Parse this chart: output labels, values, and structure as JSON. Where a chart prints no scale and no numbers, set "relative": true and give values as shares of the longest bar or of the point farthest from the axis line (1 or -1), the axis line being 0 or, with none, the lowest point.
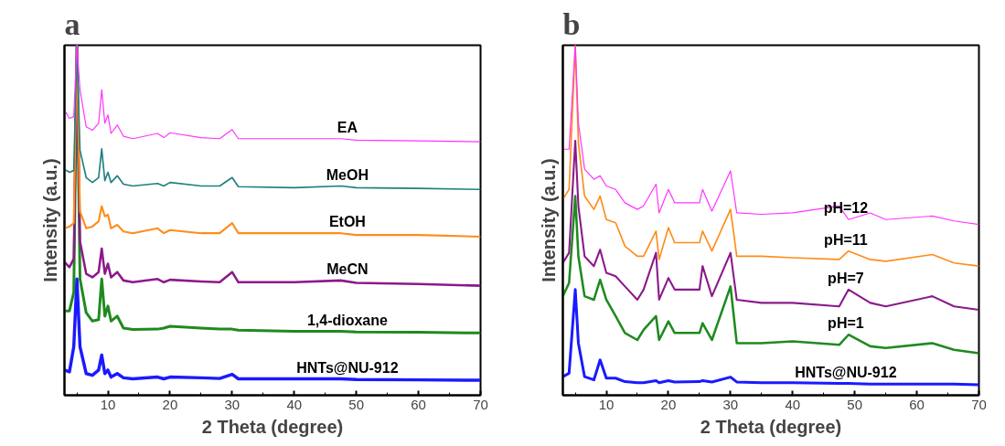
{
  "chart_data": [
    {
      "type": "line",
      "title": "a",
      "xlabel": "2 Theta (degree)",
      "ylabel": "Intensity (a.u.)",
      "relative": true,
      "grid": false,
      "marker": "none",
      "line_style": "solid",
      "xlim": [
        3,
        70
      ],
      "xticks": [
        {
          "value": 5,
          "label": null
        },
        10,
        {
          "value": 15,
          "label": null
        },
        20,
        {
          "value": 25,
          "label": null
        },
        30,
        {
          "value": 35,
          "label": null
        },
        40,
        {
          "value": 45,
          "label": null
        },
        50,
        {
          "value": 55,
          "label": null
        },
        60,
        {
          "value": 65,
          "label": null
        },
        70
      ],
      "x": [
        3,
        3.8,
        4.5,
        5,
        5.5,
        6.5,
        7.5,
        8.5,
        9,
        9.5,
        10,
        10.5,
        11.5,
        12.5,
        14,
        18,
        19,
        20,
        25,
        28,
        30,
        31,
        40,
        47.5,
        50,
        60,
        70
      ],
      "series": [
        {
          "name": "HNTs@NU-912",
          "color": "#1a1aff",
          "values": [
            0.072,
            0.067,
            0.139,
            0.332,
            0.139,
            0.062,
            0.057,
            0.072,
            0.115,
            0.062,
            0.072,
            0.052,
            0.062,
            0.05,
            0.047,
            0.052,
            0.047,
            0.052,
            0.05,
            0.048,
            0.06,
            0.047,
            0.047,
            0.047,
            0.045,
            0.044,
            0.043
          ]
        },
        {
          "name": "1,4-dioxane",
          "color": "#1f8a1f",
          "values": [
            0.241,
            0.241,
            0.294,
            1,
            0.332,
            0.236,
            0.212,
            0.216,
            0.332,
            0.226,
            0.255,
            0.212,
            0.226,
            0.192,
            0.188,
            0.189,
            0.192,
            0.197,
            0.192,
            0.189,
            0.189,
            0.186,
            0.183,
            0.183,
            0.181,
            0.18,
            0.178
          ]
        },
        {
          "name": "MeCN",
          "color": "#8b1a8b",
          "values": [
            0.381,
            0.366,
            0.39,
            1,
            0.439,
            0.347,
            0.337,
            0.352,
            0.419,
            0.347,
            0.376,
            0.337,
            0.352,
            0.328,
            0.323,
            0.332,
            0.323,
            0.33,
            0.325,
            0.323,
            0.352,
            0.323,
            0.323,
            0.328,
            0.321,
            0.318,
            0.313
          ]
        },
        {
          "name": "EtOH",
          "color": "#ff8c1a",
          "values": [
            0.477,
            0.482,
            0.492,
            1,
            0.526,
            0.477,
            0.482,
            0.497,
            0.54,
            0.511,
            0.516,
            0.477,
            0.487,
            0.468,
            0.463,
            0.477,
            0.463,
            0.472,
            0.463,
            0.463,
            0.492,
            0.463,
            0.463,
            0.463,
            0.458,
            0.458,
            0.453
          ]
        },
        {
          "name": "MeOH",
          "color": "#1f7f7f",
          "values": [
            0.646,
            0.637,
            0.642,
            1,
            0.7,
            0.622,
            0.608,
            0.622,
            0.704,
            0.613,
            0.637,
            0.608,
            0.627,
            0.603,
            0.598,
            0.605,
            0.598,
            0.608,
            0.598,
            0.598,
            0.622,
            0.596,
            0.593,
            0.598,
            0.593,
            0.591,
            0.588
          ]
        },
        {
          "name": "EA",
          "color": "#ff33ff",
          "values": [
            0.815,
            0.791,
            0.796,
            1,
            0.873,
            0.767,
            0.757,
            0.777,
            0.873,
            0.777,
            0.801,
            0.748,
            0.772,
            0.74,
            0.733,
            0.748,
            0.736,
            0.75,
            0.736,
            0.733,
            0.759,
            0.733,
            0.733,
            0.733,
            0.729,
            0.727,
            0.724
          ]
        }
      ]
    },
    {
      "type": "line",
      "title": "b",
      "xlabel": "2 Theta (degree)",
      "ylabel": "Intensity (a.u.)",
      "relative": true,
      "grid": false,
      "marker": "none",
      "line_style": "solid",
      "xlim": [
        3,
        70
      ],
      "xticks": [
        {
          "value": 5,
          "label": null
        },
        10,
        {
          "value": 15,
          "label": null
        },
        20,
        {
          "value": 25,
          "label": null
        },
        30,
        {
          "value": 35,
          "label": null
        },
        40,
        {
          "value": 45,
          "label": null
        },
        50,
        {
          "value": 55,
          "label": null
        },
        60,
        {
          "value": 65,
          "label": null
        },
        70
      ],
      "x": [
        3,
        4,
        5,
        5.5,
        6.5,
        8,
        9,
        10,
        11.5,
        13,
        15,
        16,
        18,
        18.5,
        20,
        21,
        25,
        25.5,
        27,
        30,
        31,
        35,
        40,
        47.5,
        49,
        52.5,
        55,
        62.5,
        66,
        70
      ],
      "series": [
        {
          "name": "HNTs@NU-912",
          "color": "#1a1aff",
          "values": [
            0.053,
            0.063,
            0.302,
            0.149,
            0.053,
            0.044,
            0.101,
            0.049,
            0.049,
            0.039,
            0.036,
            0.036,
            0.042,
            0.036,
            0.042,
            0.038,
            0.039,
            0.042,
            0.038,
            0.052,
            0.038,
            0.036,
            0.036,
            0.034,
            0.034,
            0.032,
            0.032,
            0.032,
            0.032,
            0.03
          ]
        },
        {
          "name": "pH=1",
          "color": "#1f8a1f",
          "values": [
            0.283,
            0.321,
            0.569,
            0.397,
            0.283,
            0.273,
            0.33,
            0.273,
            0.226,
            0.178,
            0.158,
            0.187,
            0.226,
            0.158,
            0.211,
            0.178,
            0.178,
            0.206,
            0.158,
            0.311,
            0.149,
            0.149,
            0.154,
            0.144,
            0.173,
            0.14,
            0.135,
            0.149,
            0.13,
            0.12
          ]
        },
        {
          "name": "pH=7",
          "color": "#8b1a8b",
          "values": [
            0.378,
            0.407,
            0.727,
            0.541,
            0.397,
            0.369,
            0.416,
            0.35,
            0.34,
            0.311,
            0.273,
            0.302,
            0.407,
            0.273,
            0.335,
            0.302,
            0.302,
            0.369,
            0.283,
            0.407,
            0.273,
            0.264,
            0.264,
            0.254,
            0.302,
            0.264,
            0.254,
            0.283,
            0.254,
            0.244
          ]
        },
        {
          "name": "pH=11",
          "color": "#ff8c1a",
          "values": [
            0.56,
            0.588,
            1,
            0.722,
            0.569,
            0.531,
            0.569,
            0.502,
            0.493,
            0.426,
            0.397,
            0.397,
            0.469,
            0.388,
            0.479,
            0.436,
            0.436,
            0.469,
            0.412,
            0.531,
            0.397,
            0.397,
            0.393,
            0.388,
            0.412,
            0.388,
            0.383,
            0.402,
            0.378,
            0.369
          ]
        },
        {
          "name": "pH=12",
          "color": "#ff33ff",
          "values": [
            0.703,
            0.703,
            1,
            0.779,
            0.646,
            0.617,
            0.627,
            0.598,
            0.588,
            0.55,
            0.531,
            0.541,
            0.603,
            0.521,
            0.588,
            0.55,
            0.55,
            0.588,
            0.526,
            0.641,
            0.521,
            0.517,
            0.521,
            0.541,
            0.502,
            0.521,
            0.502,
            0.512,
            0.498,
            0.488
          ]
        }
      ]
    }
  ]
}
